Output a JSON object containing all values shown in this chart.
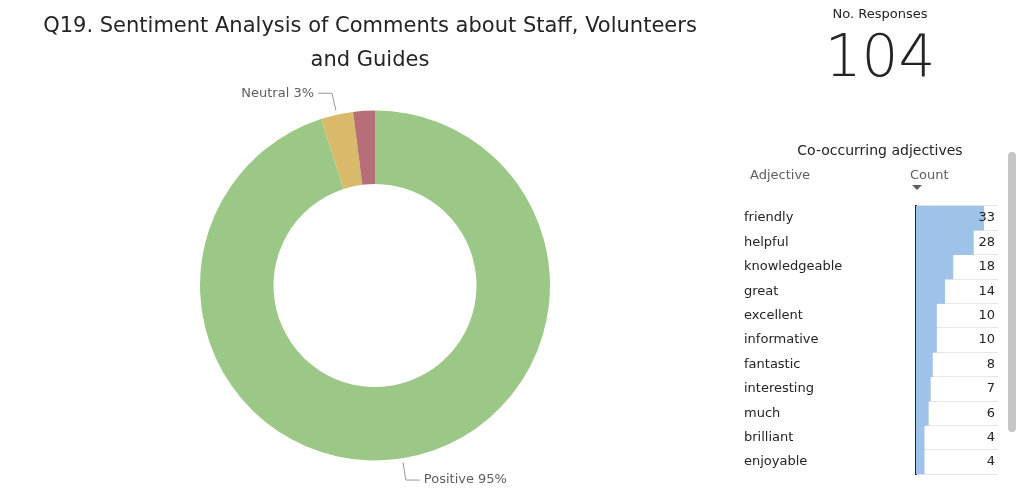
{
  "chart_data": [
    {
      "type": "donut",
      "title": "Q19. Sentiment Analysis of Comments about Staff, Volunteers and Guides",
      "categories": [
        "Positive",
        "Neutral",
        null
      ],
      "values": [
        95,
        3,
        2
      ],
      "value_labels": [
        "95%",
        "3%",
        null
      ],
      "colors": [
        "#9cc887",
        "#d9b96a",
        "#b86e78"
      ],
      "legend": false
    },
    {
      "type": "other",
      "title": "No. Responses",
      "annotations": [
        "104"
      ]
    },
    {
      "type": "bar",
      "orientation": "horizontal",
      "title": "Co-occurring adjectives",
      "ylabel": "Adjective",
      "xlabel": "Count",
      "categories": [
        "friendly",
        "helpful",
        "knowledgeable",
        "great",
        "excellent",
        "informative",
        "fantastic",
        "interesting",
        "much",
        "brilliant",
        "enjoyable"
      ],
      "values": [
        33,
        28,
        18,
        14,
        10,
        10,
        8,
        7,
        6,
        4,
        4
      ],
      "color": "#9fc2e9",
      "data_labels": true,
      "tick_labels": "y",
      "grid": "y",
      "legend": false
    }
  ]
}
